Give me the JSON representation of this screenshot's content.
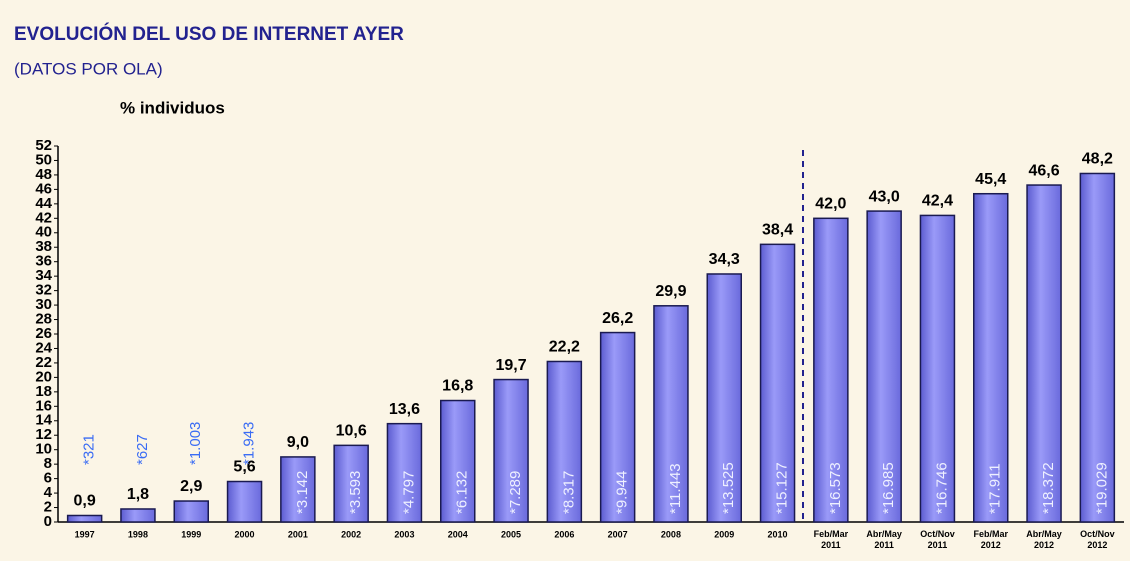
{
  "chart_data": {
    "type": "bar",
    "title": "EVOLUCIÓN DEL USO DE INTERNET AYER",
    "subtitle": "(DATOS POR OLA)",
    "y_label": "% individuos",
    "categories": [
      "1997",
      "1998",
      "1999",
      "2000",
      "2001",
      "2002",
      "2003",
      "2004",
      "2005",
      "2006",
      "2007",
      "2008",
      "2009",
      "2010",
      "Feb/Mar 2011",
      "Abr/May 2011",
      "Oct/Nov 2011",
      "Feb/Mar 2012",
      "Abr/May 2012",
      "Oct/Nov 2012"
    ],
    "values": [
      0.9,
      1.8,
      2.9,
      5.6,
      9.0,
      10.6,
      13.6,
      16.8,
      19.7,
      22.2,
      26.2,
      29.9,
      34.3,
      38.4,
      42.0,
      43.0,
      42.4,
      45.4,
      46.6,
      48.2
    ],
    "value_labels": [
      "0,9",
      "1,8",
      "2,9",
      "5,6",
      "9,0",
      "10,6",
      "13,6",
      "16,8",
      "19,7",
      "22,2",
      "26,2",
      "29,9",
      "34,3",
      "38,4",
      "42,0",
      "43,0",
      "42,4",
      "45,4",
      "46,6",
      "48,2"
    ],
    "annotations": [
      "*321",
      "*627",
      "*1.003",
      "*1.943",
      "*3.142",
      "*3.593",
      "*4.797",
      "*6.132",
      "*7.289",
      "*8.317",
      "*9.944",
      "*11.443",
      "*13.525",
      "*15.127",
      "*16.573",
      "*16.985",
      "*16.746",
      "*17.911",
      "*18.372",
      "*19.029"
    ],
    "color": "#7c7cec",
    "ylim": [
      0,
      52
    ],
    "yticks": [
      0,
      2,
      4,
      6,
      8,
      10,
      12,
      14,
      16,
      18,
      20,
      22,
      24,
      26,
      28,
      30,
      32,
      34,
      36,
      38,
      40,
      42,
      44,
      46,
      48,
      50,
      52
    ]
  }
}
